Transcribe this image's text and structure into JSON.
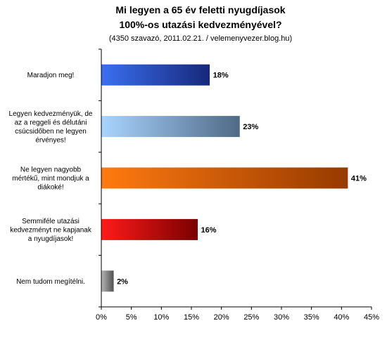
{
  "chart_data": {
    "type": "bar",
    "orientation": "horizontal",
    "title_line1": "Mi legyen a 65 év feletti nyugdíjasok",
    "title_line2": "100%-os utazási kedvezményével?",
    "subtitle": "(4350 szavazó, 2011.02.21. / velemenyvezer.blog.hu)",
    "xlabel": "",
    "ylabel": "",
    "xlim": [
      0,
      45
    ],
    "x_ticks": [
      0,
      5,
      10,
      15,
      20,
      25,
      30,
      35,
      40,
      45
    ],
    "x_tick_labels": [
      "0%",
      "5%",
      "10%",
      "15%",
      "20%",
      "25%",
      "30%",
      "35%",
      "40%",
      "45%"
    ],
    "grid": false,
    "legend": "none",
    "categories": [
      [
        "Maradjon meg!"
      ],
      [
        "Legyen kedvezményük, de",
        "az a reggeli és délutáni",
        "csúcsidőben ne legyen",
        "érvényes!"
      ],
      [
        "Ne legyen nagyobb",
        "mértékű, mint mondjuk a",
        "diákoké!"
      ],
      [
        "Semmiféle utazási",
        "kedvezményt ne kapjanak",
        "a nyugdíjasok!"
      ],
      [
        "Nem tudom megítélni."
      ]
    ],
    "values": [
      18,
      23,
      41,
      16,
      2
    ],
    "value_labels": [
      "18%",
      "23%",
      "41%",
      "16%",
      "2%"
    ],
    "colors": [
      [
        "#3a6ff0",
        "#17287a"
      ],
      [
        "#a9d4ff",
        "#506a86"
      ],
      [
        "#ff7a10",
        "#963a00"
      ],
      [
        "#ff1a1a",
        "#7a0000"
      ],
      [
        "#b4b4b4",
        "#505050"
      ]
    ]
  }
}
